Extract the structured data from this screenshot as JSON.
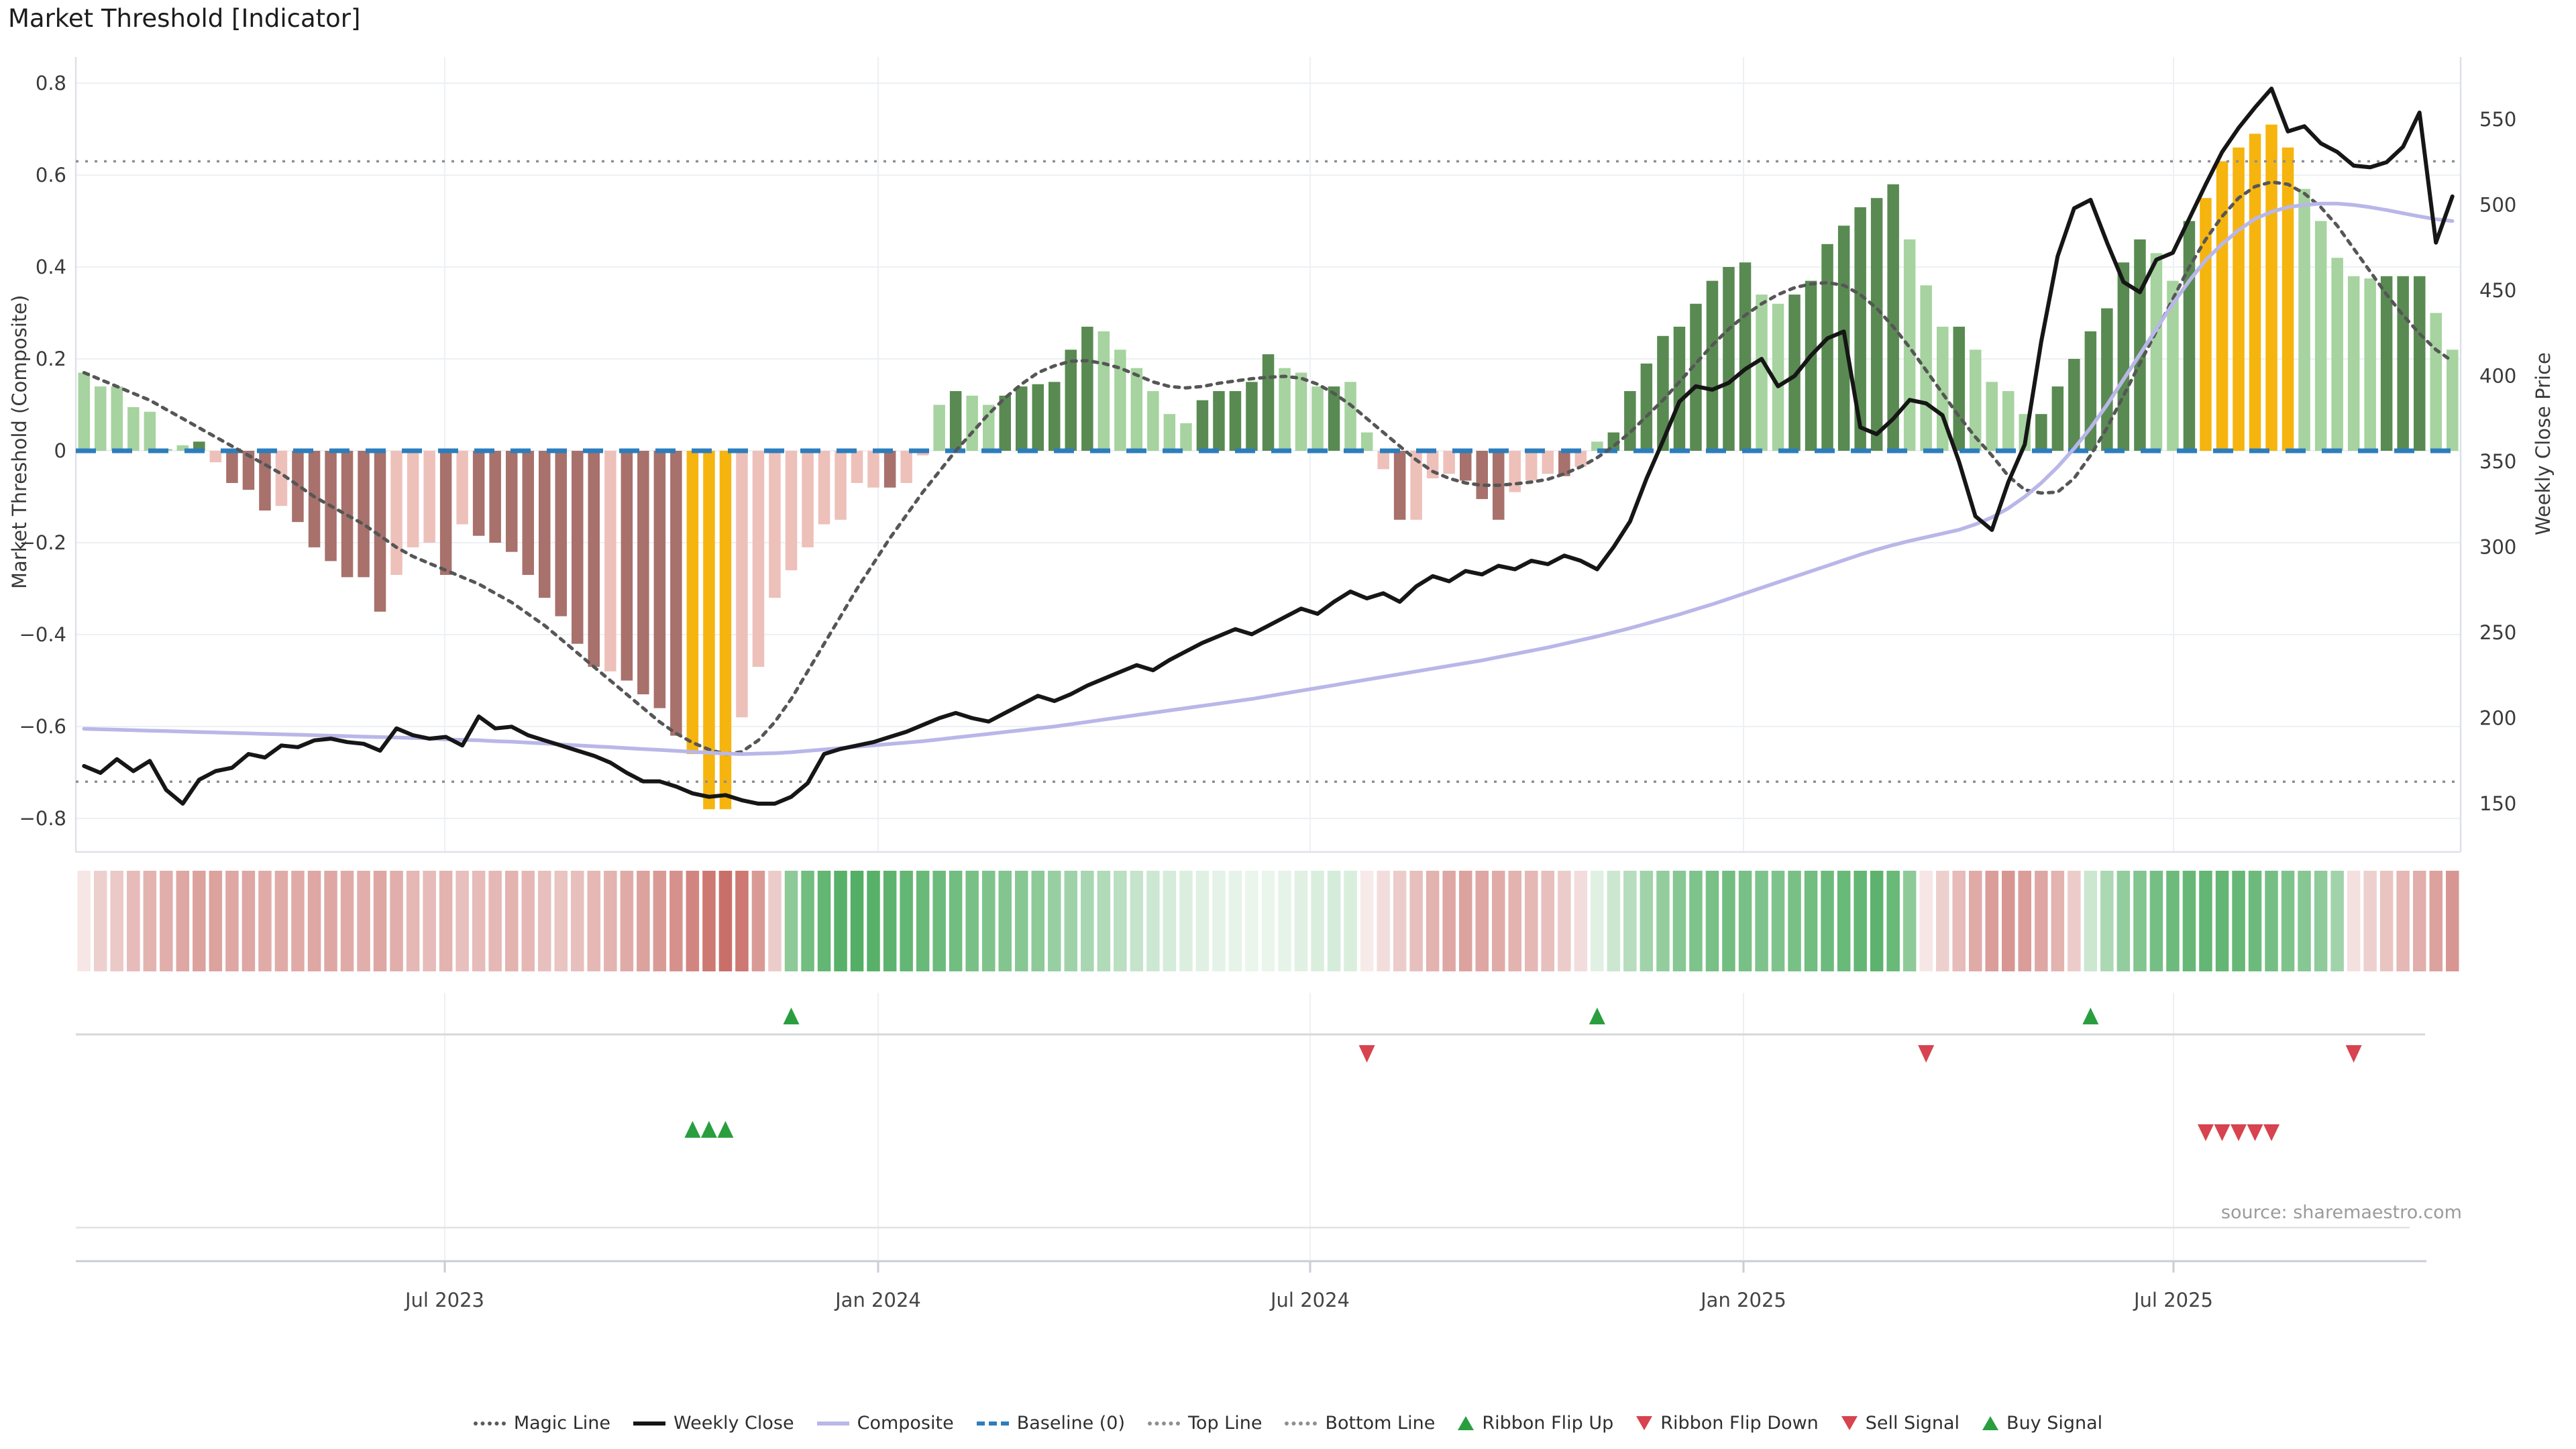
{
  "title": "Market Threshold [Indicator]",
  "source": "source: sharemaestro.com",
  "axes": {
    "left_label": "Market Threshold (Composite)",
    "right_label": "Weekly Close Price",
    "left_ticks": [
      {
        "label": "0.8",
        "value": 0.8
      },
      {
        "label": "0.6",
        "value": 0.6
      },
      {
        "label": "0.4",
        "value": 0.4
      },
      {
        "label": "0.2",
        "value": 0.2
      },
      {
        "label": "0",
        "value": 0
      },
      {
        "label": "−0.2",
        "value": -0.2
      },
      {
        "label": "−0.4",
        "value": -0.4
      },
      {
        "label": "−0.6",
        "value": -0.6
      },
      {
        "label": "−0.8",
        "value": -0.8
      }
    ],
    "right_ticks": [
      {
        "label": "550",
        "value": 550
      },
      {
        "label": "500",
        "value": 500
      },
      {
        "label": "450",
        "value": 450
      },
      {
        "label": "400",
        "value": 400
      },
      {
        "label": "350",
        "value": 350
      },
      {
        "label": "300",
        "value": 300
      },
      {
        "label": "250",
        "value": 250
      },
      {
        "label": "200",
        "value": 200
      },
      {
        "label": "150",
        "value": 150
      }
    ],
    "x_ticks": [
      {
        "label": "Jul 2023",
        "x": 663
      },
      {
        "label": "Jan 2024",
        "x": 1309
      },
      {
        "label": "Jul 2024",
        "x": 1953
      },
      {
        "label": "Jan 2025",
        "x": 2599
      },
      {
        "label": "Jul 2025",
        "x": 3240
      }
    ]
  },
  "legend": {
    "items": [
      {
        "label": "Magic Line",
        "swatch": "dotted",
        "color": "#5a5a5a"
      },
      {
        "label": "Weekly Close",
        "swatch": "solid",
        "color": "#151515"
      },
      {
        "label": "Composite",
        "swatch": "solid",
        "color": "#b9b7e8"
      },
      {
        "label": "Baseline (0)",
        "swatch": "dashed",
        "color": "#2d7dbd"
      },
      {
        "label": "Top Line",
        "swatch": "dotted",
        "color": "#8f8f8f"
      },
      {
        "label": "Bottom Line",
        "swatch": "dotted",
        "color": "#8f8f8f"
      },
      {
        "label": "Ribbon Flip Up",
        "swatch": "triangle-up",
        "color": "#2a9e3f"
      },
      {
        "label": "Ribbon Flip Down",
        "swatch": "triangle-down",
        "color": "#d7434e"
      },
      {
        "label": "Sell Signal",
        "swatch": "triangle-down",
        "color": "#d7434e"
      },
      {
        "label": "Buy Signal",
        "swatch": "triangle-up",
        "color": "#2a9e3f"
      }
    ]
  },
  "colors": {
    "bar": {
      "lg": "#a6d39f",
      "dg": "#598a52",
      "lr": "#eec0ba",
      "dr": "#a8716c",
      "or": "#f6b40e"
    },
    "ribbon_green": "#2f9e44",
    "ribbon_red": "#c0564f",
    "signal_green": "#2a9e3f",
    "signal_red": "#d7434e",
    "baseline_blue": "#2d7dbd",
    "composite_line": "#b9b7e8",
    "weekly_close_line": "#161616",
    "magic_line": "#565656",
    "ref_line": "#8f8f8f",
    "grid": "#edf0f4",
    "spine": "#dde1e7",
    "tick_text": "#3a3a3a"
  },
  "chart_data": {
    "type": "bar",
    "description": "Weekly composite threshold bars with overlaid weekly close price, composite and magic lines, momentum ribbon and trade signals",
    "x_range_labels": [
      "Jul 2023",
      "Jan 2024",
      "Jul 2024",
      "Jan 2025",
      "Jul 2025"
    ],
    "ylim_left": [
      -0.8,
      0.8
    ],
    "ylim_right": [
      150,
      550
    ],
    "reference_lines": {
      "top_line": 0.63,
      "bottom_line": -0.72,
      "baseline": 0
    },
    "bars": {
      "values": [
        0.17,
        0.14,
        0.14,
        0.095,
        0.085,
        0.004,
        0.012,
        0.02,
        -0.025,
        -0.07,
        -0.085,
        -0.13,
        -0.12,
        -0.155,
        -0.21,
        -0.24,
        -0.275,
        -0.275,
        -0.35,
        -0.27,
        -0.21,
        -0.2,
        -0.27,
        -0.16,
        -0.185,
        -0.2,
        -0.22,
        -0.27,
        -0.32,
        -0.36,
        -0.42,
        -0.47,
        -0.48,
        -0.5,
        -0.53,
        -0.56,
        -0.62,
        -0.66,
        -0.78,
        -0.78,
        -0.58,
        -0.47,
        -0.32,
        -0.26,
        -0.21,
        -0.16,
        -0.15,
        -0.07,
        -0.08,
        -0.08,
        -0.07,
        -0.01,
        0.1,
        0.13,
        0.12,
        0.1,
        0.12,
        0.14,
        0.145,
        0.15,
        0.22,
        0.27,
        0.26,
        0.22,
        0.18,
        0.13,
        0.08,
        0.06,
        0.11,
        0.13,
        0.13,
        0.15,
        0.21,
        0.18,
        0.17,
        0.14,
        0.14,
        0.15,
        0.04,
        -0.04,
        -0.15,
        -0.15,
        -0.06,
        -0.05,
        -0.065,
        -0.105,
        -0.15,
        -0.09,
        -0.065,
        -0.05,
        -0.055,
        -0.035,
        0.02,
        0.04,
        0.13,
        0.19,
        0.25,
        0.27,
        0.32,
        0.37,
        0.4,
        0.41,
        0.34,
        0.32,
        0.34,
        0.37,
        0.45,
        0.49,
        0.53,
        0.55,
        0.58,
        0.46,
        0.36,
        0.27,
        0.27,
        0.22,
        0.15,
        0.13,
        0.08,
        0.08,
        0.14,
        0.2,
        0.26,
        0.31,
        0.41,
        0.46,
        0.43,
        0.37,
        0.5,
        0.55,
        0.63,
        0.66,
        0.69,
        0.71,
        0.66,
        0.57,
        0.5,
        0.42,
        0.38,
        0.375,
        0.38,
        0.38,
        0.38,
        0.3,
        0.22
      ],
      "colors": [
        "lg",
        "lg",
        "lg",
        "lg",
        "lg",
        "lg",
        "lg",
        "dg",
        "lr",
        "dr",
        "dr",
        "dr",
        "lr",
        "dr",
        "dr",
        "dr",
        "dr",
        "dr",
        "dr",
        "lr",
        "lr",
        "lr",
        "dr",
        "lr",
        "dr",
        "dr",
        "dr",
        "dr",
        "dr",
        "dr",
        "dr",
        "dr",
        "lr",
        "dr",
        "dr",
        "dr",
        "dr",
        "or",
        "or",
        "or",
        "lr",
        "lr",
        "lr",
        "lr",
        "lr",
        "lr",
        "lr",
        "lr",
        "lr",
        "dr",
        "lr",
        "lr",
        "lg",
        "dg",
        "lg",
        "lg",
        "dg",
        "dg",
        "dg",
        "dg",
        "dg",
        "dg",
        "lg",
        "lg",
        "lg",
        "lg",
        "lg",
        "lg",
        "dg",
        "dg",
        "dg",
        "dg",
        "dg",
        "lg",
        "lg",
        "lg",
        "dg",
        "lg",
        "lg",
        "lr",
        "dr",
        "lr",
        "lr",
        "lr",
        "dr",
        "dr",
        "dr",
        "lr",
        "lr",
        "lr",
        "dr",
        "lr",
        "lg",
        "dg",
        "dg",
        "dg",
        "dg",
        "dg",
        "dg",
        "dg",
        "dg",
        "dg",
        "lg",
        "lg",
        "dg",
        "dg",
        "dg",
        "dg",
        "dg",
        "dg",
        "dg",
        "lg",
        "lg",
        "lg",
        "dg",
        "lg",
        "lg",
        "lg",
        "lg",
        "dg",
        "dg",
        "dg",
        "dg",
        "dg",
        "dg",
        "dg",
        "lg",
        "lg",
        "dg",
        "or",
        "or",
        "or",
        "or",
        "or",
        "or",
        "lg",
        "lg",
        "lg",
        "lg",
        "lg",
        "dg",
        "dg",
        "dg",
        "lg",
        "lg"
      ]
    },
    "series": [
      {
        "name": "Weekly Close",
        "axis": "right",
        "values": [
          172,
          168,
          176,
          169,
          175,
          158,
          150,
          164,
          169,
          171,
          179,
          177,
          184,
          183,
          187,
          188,
          186,
          185,
          181,
          194,
          190,
          188,
          189,
          184,
          201,
          194,
          195,
          190,
          187,
          184,
          181,
          178,
          174,
          168,
          163,
          163,
          160,
          156,
          154,
          155,
          152,
          150,
          150,
          154,
          162,
          179,
          182,
          184,
          186,
          189,
          192,
          196,
          200,
          203,
          200,
          198,
          203,
          208,
          213,
          210,
          214,
          219,
          223,
          227,
          231,
          228,
          234,
          239,
          244,
          248,
          252,
          249,
          254,
          259,
          264,
          261,
          268,
          274,
          270,
          273,
          268,
          277,
          283,
          280,
          286,
          284,
          289,
          287,
          292,
          290,
          295,
          292,
          287,
          300,
          315,
          340,
          362,
          385,
          394,
          392,
          396,
          404,
          410,
          394,
          400,
          412,
          422,
          426,
          370,
          366,
          375,
          386,
          384,
          377,
          350,
          318,
          310,
          338,
          360,
          420,
          470,
          498,
          503,
          478,
          455,
          449,
          468,
          472,
          492,
          512,
          531,
          545,
          557,
          568,
          543,
          546,
          536,
          531,
          523,
          522,
          525,
          534,
          554,
          478,
          505
        ]
      },
      {
        "name": "Composite",
        "axis": "left",
        "values": [
          -0.605,
          -0.606,
          -0.607,
          -0.608,
          -0.609,
          -0.61,
          -0.611,
          -0.612,
          -0.613,
          -0.614,
          -0.615,
          -0.616,
          -0.617,
          -0.618,
          -0.619,
          -0.62,
          -0.621,
          -0.622,
          -0.623,
          -0.624,
          -0.625,
          -0.626,
          -0.628,
          -0.629,
          -0.63,
          -0.632,
          -0.633,
          -0.635,
          -0.637,
          -0.639,
          -0.641,
          -0.643,
          -0.645,
          -0.647,
          -0.649,
          -0.651,
          -0.653,
          -0.655,
          -0.657,
          -0.659,
          -0.66,
          -0.659,
          -0.658,
          -0.656,
          -0.653,
          -0.65,
          -0.647,
          -0.644,
          -0.641,
          -0.638,
          -0.635,
          -0.632,
          -0.628,
          -0.624,
          -0.62,
          -0.616,
          -0.612,
          -0.608,
          -0.604,
          -0.6,
          -0.595,
          -0.59,
          -0.585,
          -0.58,
          -0.575,
          -0.57,
          -0.565,
          -0.56,
          -0.555,
          -0.55,
          -0.545,
          -0.54,
          -0.534,
          -0.528,
          -0.522,
          -0.516,
          -0.51,
          -0.504,
          -0.498,
          -0.492,
          -0.486,
          -0.48,
          -0.474,
          -0.468,
          -0.462,
          -0.456,
          -0.449,
          -0.442,
          -0.435,
          -0.428,
          -0.42,
          -0.412,
          -0.404,
          -0.395,
          -0.386,
          -0.376,
          -0.366,
          -0.356,
          -0.345,
          -0.334,
          -0.322,
          -0.31,
          -0.298,
          -0.286,
          -0.274,
          -0.262,
          -0.25,
          -0.238,
          -0.226,
          -0.215,
          -0.205,
          -0.196,
          -0.188,
          -0.18,
          -0.172,
          -0.16,
          -0.145,
          -0.125,
          -0.1,
          -0.07,
          -0.035,
          0.005,
          0.05,
          0.1,
          0.155,
          0.21,
          0.265,
          0.32,
          0.37,
          0.415,
          0.45,
          0.48,
          0.505,
          0.52,
          0.53,
          0.535,
          0.538,
          0.538,
          0.535,
          0.53,
          0.524,
          0.517,
          0.51,
          0.504,
          0.5
        ]
      },
      {
        "name": "Magic Line",
        "axis": "left",
        "values": [
          0.17,
          0.155,
          0.14,
          0.125,
          0.11,
          0.09,
          0.07,
          0.05,
          0.03,
          0.01,
          -0.01,
          -0.03,
          -0.05,
          -0.075,
          -0.1,
          -0.12,
          -0.14,
          -0.16,
          -0.185,
          -0.21,
          -0.23,
          -0.245,
          -0.26,
          -0.275,
          -0.29,
          -0.31,
          -0.33,
          -0.355,
          -0.38,
          -0.41,
          -0.44,
          -0.47,
          -0.5,
          -0.53,
          -0.56,
          -0.59,
          -0.615,
          -0.635,
          -0.65,
          -0.66,
          -0.655,
          -0.63,
          -0.59,
          -0.54,
          -0.48,
          -0.42,
          -0.36,
          -0.3,
          -0.245,
          -0.19,
          -0.14,
          -0.09,
          -0.045,
          0.0,
          0.04,
          0.08,
          0.115,
          0.145,
          0.17,
          0.185,
          0.195,
          0.196,
          0.19,
          0.18,
          0.165,
          0.15,
          0.14,
          0.137,
          0.14,
          0.147,
          0.152,
          0.157,
          0.16,
          0.162,
          0.158,
          0.145,
          0.125,
          0.1,
          0.07,
          0.04,
          0.01,
          -0.02,
          -0.045,
          -0.06,
          -0.07,
          -0.075,
          -0.075,
          -0.072,
          -0.068,
          -0.062,
          -0.05,
          -0.035,
          -0.015,
          0.01,
          0.04,
          0.075,
          0.11,
          0.15,
          0.19,
          0.23,
          0.265,
          0.295,
          0.32,
          0.34,
          0.355,
          0.363,
          0.366,
          0.36,
          0.34,
          0.31,
          0.27,
          0.225,
          0.175,
          0.125,
          0.075,
          0.03,
          -0.01,
          -0.055,
          -0.085,
          -0.092,
          -0.09,
          -0.06,
          -0.01,
          0.05,
          0.12,
          0.19,
          0.26,
          0.33,
          0.4,
          0.46,
          0.51,
          0.55,
          0.575,
          0.585,
          0.58,
          0.56,
          0.53,
          0.49,
          0.44,
          0.39,
          0.34,
          0.295,
          0.255,
          0.22,
          0.195
        ]
      }
    ],
    "ribbon": [
      -0.15,
      -0.28,
      -0.32,
      -0.4,
      -0.45,
      -0.48,
      -0.52,
      -0.55,
      -0.55,
      -0.52,
      -0.52,
      -0.5,
      -0.5,
      -0.5,
      -0.52,
      -0.52,
      -0.5,
      -0.48,
      -0.52,
      -0.48,
      -0.42,
      -0.4,
      -0.45,
      -0.38,
      -0.4,
      -0.42,
      -0.45,
      -0.42,
      -0.38,
      -0.35,
      -0.38,
      -0.42,
      -0.45,
      -0.5,
      -0.55,
      -0.6,
      -0.65,
      -0.72,
      -0.8,
      -0.85,
      -0.8,
      -0.6,
      -0.3,
      0.55,
      0.68,
      0.75,
      0.8,
      0.82,
      0.8,
      0.78,
      0.75,
      0.72,
      0.7,
      0.68,
      0.65,
      0.62,
      0.6,
      0.58,
      0.55,
      0.5,
      0.46,
      0.42,
      0.38,
      0.33,
      0.28,
      0.24,
      0.2,
      0.17,
      0.15,
      0.13,
      0.12,
      0.1,
      0.1,
      0.12,
      0.15,
      0.18,
      0.2,
      0.18,
      -0.12,
      -0.2,
      -0.3,
      -0.38,
      -0.45,
      -0.52,
      -0.55,
      -0.52,
      -0.5,
      -0.45,
      -0.42,
      -0.38,
      -0.3,
      -0.2,
      0.15,
      0.25,
      0.35,
      0.45,
      0.52,
      0.58,
      0.62,
      0.65,
      0.68,
      0.65,
      0.62,
      0.62,
      0.65,
      0.68,
      0.7,
      0.72,
      0.75,
      0.78,
      0.72,
      0.55,
      -0.15,
      -0.28,
      -0.4,
      -0.5,
      -0.58,
      -0.62,
      -0.58,
      -0.52,
      -0.45,
      -0.3,
      0.25,
      0.4,
      0.52,
      0.6,
      0.66,
      0.7,
      0.73,
      0.75,
      0.75,
      0.73,
      0.7,
      0.66,
      0.62,
      0.58,
      0.54,
      0.45,
      -0.18,
      -0.28,
      -0.35,
      -0.42,
      -0.48,
      -0.55,
      -0.62
    ],
    "signals": {
      "ribbon_flip_up_indices": [
        43,
        92,
        122
      ],
      "ribbon_flip_down_indices": [
        78,
        112,
        138
      ],
      "buy_indices": [
        37,
        38,
        39
      ],
      "sell_indices": [
        129,
        130,
        131,
        132,
        133
      ]
    }
  }
}
